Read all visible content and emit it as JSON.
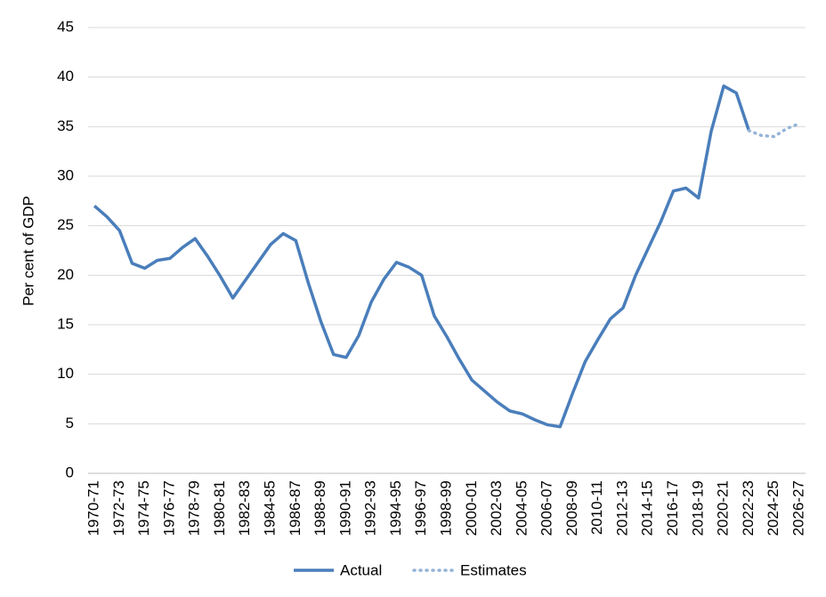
{
  "chart_data": {
    "type": "line",
    "y_label": "Per cent of GDP",
    "categories": [
      "1970-71",
      null,
      "1972-73",
      null,
      "1974-75",
      null,
      "1976-77",
      null,
      "1978-79",
      null,
      "1980-81",
      null,
      "1982-83",
      null,
      "1984-85",
      null,
      "1986-87",
      null,
      "1988-89",
      null,
      "1990-91",
      null,
      "1992-93",
      null,
      "1994-95",
      null,
      "1996-97",
      null,
      "1998-99",
      null,
      "2000-01",
      null,
      "2002-03",
      null,
      "2004-05",
      null,
      "2006-07",
      null,
      "2008-09",
      null,
      "2010-11",
      null,
      "2012-13",
      null,
      "2014-15",
      null,
      "2016-17",
      null,
      "2018-19",
      null,
      "2020-21",
      null,
      "2022-23",
      null,
      "2024-25",
      null,
      "2026-27"
    ],
    "series": [
      {
        "name": "Actual",
        "color": "#4a7ebb",
        "style": "solid",
        "values": [
          27.0,
          25.9,
          24.5,
          21.2,
          20.7,
          21.5,
          21.7,
          22.8,
          23.7,
          21.9,
          19.9,
          17.7,
          19.5,
          21.3,
          23.1,
          24.2,
          23.5,
          19.2,
          15.3,
          12.0,
          11.7,
          13.9,
          17.3,
          19.6,
          21.3,
          20.8,
          20.0,
          15.9,
          13.8,
          11.5,
          9.4,
          8.3,
          7.2,
          6.3,
          6.0,
          5.4,
          4.9,
          4.7,
          8.1,
          11.3,
          13.5,
          15.6,
          16.7,
          20.0,
          22.7,
          25.4,
          28.5,
          28.8,
          27.8,
          34.5,
          39.1,
          38.4,
          34.6,
          null,
          null,
          null,
          null
        ]
      },
      {
        "name": "Estimates",
        "color": "#95b3d7",
        "style": "dotted",
        "values": [
          null,
          null,
          null,
          null,
          null,
          null,
          null,
          null,
          null,
          null,
          null,
          null,
          null,
          null,
          null,
          null,
          null,
          null,
          null,
          null,
          null,
          null,
          null,
          null,
          null,
          null,
          null,
          null,
          null,
          null,
          null,
          null,
          null,
          null,
          null,
          null,
          null,
          null,
          null,
          null,
          null,
          null,
          null,
          null,
          null,
          null,
          null,
          null,
          null,
          null,
          null,
          null,
          34.6,
          34.1,
          34.0,
          34.8,
          35.3
        ]
      }
    ],
    "ylim": [
      0,
      45
    ],
    "yticks": [
      0,
      5,
      10,
      15,
      20,
      25,
      30,
      35,
      40,
      45
    ],
    "grid": true,
    "legend": "bottom"
  }
}
